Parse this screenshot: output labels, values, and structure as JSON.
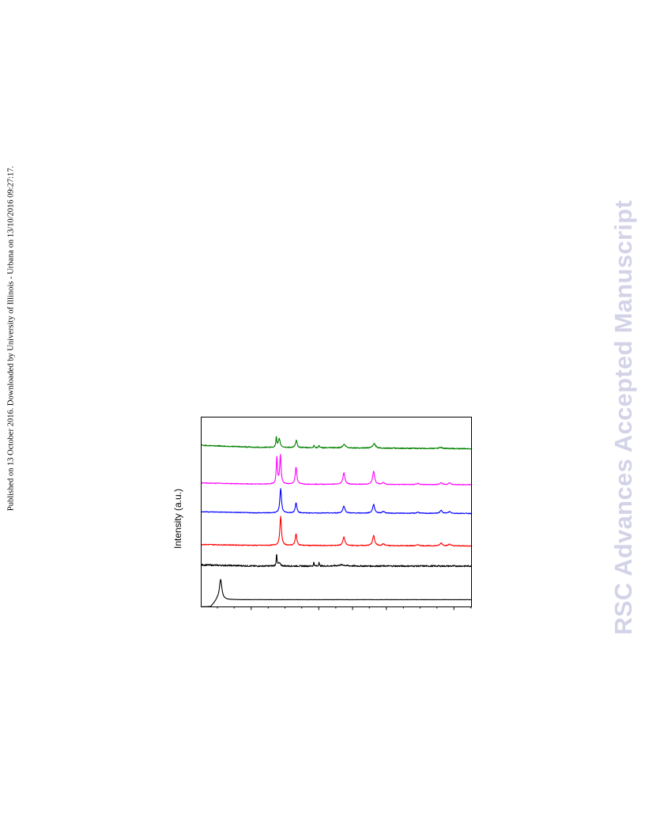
{
  "side_note": "Published on 13 October 2016. Downloaded by University of Illinois - Urbana on 13/10/2016 09:27:17.",
  "watermark": "RSC Advances Accepted Manuscript",
  "chart_data": {
    "type": "line",
    "title": "",
    "xlabel": "",
    "ylabel": "Intensity (a.u.)",
    "xlim": [
      0,
      100
    ],
    "ylim": [
      0,
      6.6
    ],
    "grid": false,
    "legend": "none",
    "series": [
      {
        "color": "#000000",
        "offset": 0.25,
        "noise": 0.004,
        "baseline": [
          [
            0,
            -0.25
          ],
          [
            3.5,
            -0.25
          ],
          [
            6,
            0.0
          ],
          [
            100,
            0.0
          ]
        ],
        "peaks": [
          [
            7.2,
            0.7,
            0.55
          ]
        ]
      },
      {
        "color": "#000000",
        "offset": 1.42,
        "noise": 0.025,
        "baseline": [
          [
            0,
            0.04
          ],
          [
            20,
            0.0
          ],
          [
            100,
            0.0
          ]
        ],
        "peaks": [
          [
            27.9,
            0.45,
            0.15
          ],
          [
            28.9,
            0.1,
            0.5
          ],
          [
            41.7,
            0.18,
            0.1
          ],
          [
            43.6,
            0.18,
            0.1
          ],
          [
            52,
            0.04,
            1.5
          ]
        ]
      },
      {
        "color": "#ff0000",
        "offset": 2.12,
        "noise": 0.015,
        "baseline": [
          [
            0,
            0.05
          ],
          [
            20,
            0.02
          ],
          [
            100,
            0.0
          ]
        ],
        "peaks": [
          [
            29.4,
            1.0,
            0.35
          ],
          [
            35.1,
            0.4,
            0.35
          ],
          [
            52.8,
            0.3,
            0.45
          ],
          [
            63.8,
            0.35,
            0.45
          ],
          [
            67.4,
            0.06,
            0.5
          ],
          [
            80.2,
            0.04,
            0.5
          ],
          [
            88.8,
            0.1,
            0.5
          ],
          [
            91.9,
            0.06,
            0.5
          ]
        ]
      },
      {
        "color": "#0000ff",
        "offset": 3.25,
        "noise": 0.012,
        "baseline": [
          [
            0,
            0.06
          ],
          [
            20,
            0.02
          ],
          [
            100,
            0.0
          ]
        ],
        "peaks": [
          [
            29.4,
            0.85,
            0.35
          ],
          [
            35.1,
            0.35,
            0.35
          ],
          [
            52.8,
            0.25,
            0.45
          ],
          [
            63.8,
            0.3,
            0.45
          ],
          [
            67.4,
            0.06,
            0.5
          ],
          [
            80.2,
            0.04,
            0.5
          ],
          [
            88.8,
            0.1,
            0.5
          ],
          [
            91.9,
            0.06,
            0.5
          ]
        ]
      },
      {
        "color": "#ff00ff",
        "offset": 4.25,
        "noise": 0.012,
        "baseline": [
          [
            0,
            0.06
          ],
          [
            20,
            0.02
          ],
          [
            100,
            0.0
          ]
        ],
        "peaks": [
          [
            28.0,
            0.95,
            0.25
          ],
          [
            29.3,
            1.0,
            0.3
          ],
          [
            35.1,
            0.6,
            0.35
          ],
          [
            52.8,
            0.4,
            0.45
          ],
          [
            63.8,
            0.45,
            0.45
          ],
          [
            67.4,
            0.06,
            0.5
          ],
          [
            80.2,
            0.04,
            0.5
          ],
          [
            88.8,
            0.06,
            0.5
          ],
          [
            91.9,
            0.06,
            0.5
          ]
        ]
      },
      {
        "color": "#008000",
        "offset": 5.5,
        "noise": 0.018,
        "baseline": [
          [
            0,
            0.12
          ],
          [
            20,
            0.05
          ],
          [
            100,
            0.0
          ]
        ],
        "peaks": [
          [
            27.8,
            0.35,
            0.2
          ],
          [
            28.9,
            0.3,
            0.4
          ],
          [
            35.2,
            0.25,
            0.35
          ],
          [
            41.7,
            0.1,
            0.15
          ],
          [
            43.6,
            0.1,
            0.15
          ],
          [
            52.9,
            0.12,
            0.6
          ],
          [
            64.0,
            0.15,
            0.6
          ],
          [
            88.6,
            0.04,
            0.7
          ]
        ]
      }
    ],
    "x_ticks": {
      "major": [
        18.5,
        43.5,
        56,
        68.5,
        93.5
      ],
      "minor": [
        6,
        12.2,
        24.8,
        31,
        37.2,
        49.8,
        62.2,
        74.8,
        81,
        87.2,
        99.8
      ]
    }
  }
}
